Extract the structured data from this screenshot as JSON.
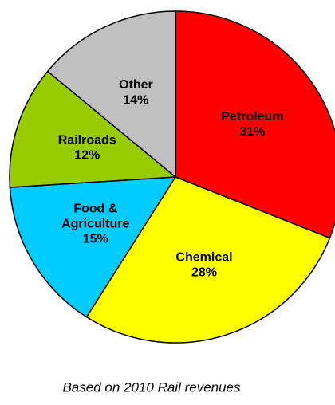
{
  "chart_data": {
    "type": "pie",
    "categories": [
      "Petroleum",
      "Chemical",
      "Food & Agriculture",
      "Railroads",
      "Other"
    ],
    "values": [
      31,
      28,
      15,
      12,
      14
    ],
    "value_labels": [
      "31%",
      "28%",
      "15%",
      "12%",
      "14%"
    ],
    "colors": [
      "#ff0000",
      "#ffff00",
      "#00ccff",
      "#99cc00",
      "#c0c0c0"
    ],
    "note": "Based on 2010 Rail revenues"
  }
}
